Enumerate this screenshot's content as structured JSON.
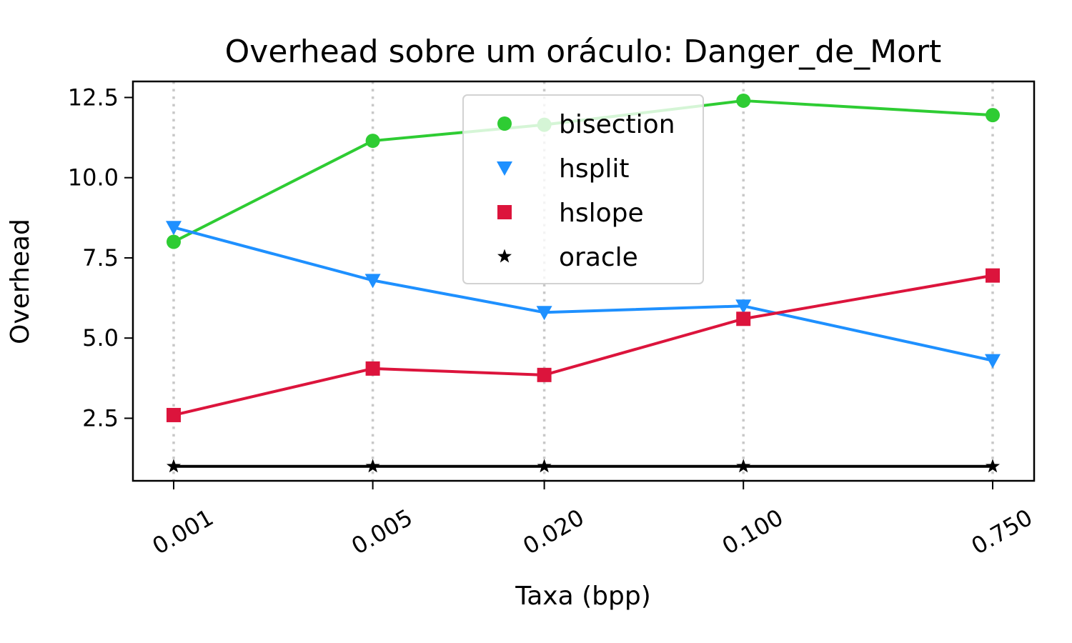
{
  "chart_data": {
    "type": "line",
    "title": "Overhead sobre um oráculo: Danger_de_Mort",
    "xlabel": "Taxa (bpp)",
    "ylabel": "Overhead",
    "categories": [
      "0.001",
      "0.005",
      "0.020",
      "0.100",
      "0.750"
    ],
    "x": [
      0.001,
      0.005,
      0.02,
      0.1,
      0.75
    ],
    "x_scale": "log",
    "ylim": [
      0.55,
      13.0
    ],
    "yticks": [
      2.5,
      5.0,
      7.5,
      10.0,
      12.5
    ],
    "ytick_labels": [
      "2.5",
      "5.0",
      "7.5",
      "10.0",
      "12.5"
    ],
    "grid": "vertical dotted at x ticks",
    "legend_position": "top-center",
    "series": [
      {
        "name": "bisection",
        "color": "#2ecc33",
        "marker": "circle",
        "values": [
          8.0,
          11.15,
          11.65,
          12.4,
          11.95
        ]
      },
      {
        "name": "hsplit",
        "color": "#1e90ff",
        "marker": "triangle-down",
        "values": [
          8.45,
          6.8,
          5.8,
          6.0,
          4.3
        ]
      },
      {
        "name": "hslope",
        "color": "#dc143c",
        "marker": "square",
        "values": [
          2.6,
          4.05,
          3.85,
          5.6,
          6.95
        ]
      },
      {
        "name": "oracle",
        "color": "#000000",
        "marker": "star",
        "values": [
          1.0,
          1.0,
          1.0,
          1.0,
          1.0
        ]
      }
    ]
  }
}
